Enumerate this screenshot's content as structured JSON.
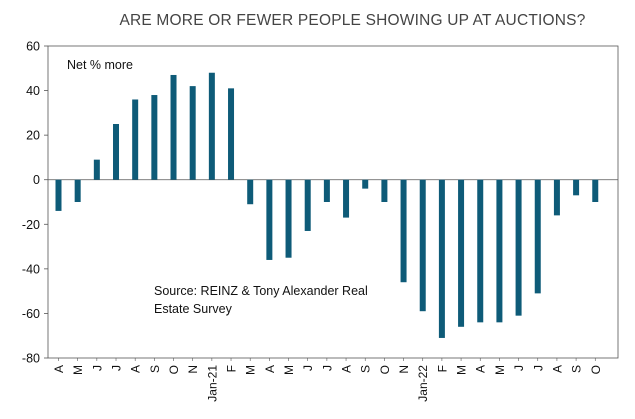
{
  "chart_data": {
    "type": "bar",
    "title": "ARE MORE OR FEWER PEOPLE SHOWING UP AT AUCTIONS?",
    "annotation": "Net % more",
    "source_line1": "Source: REINZ & Tony Alexander Real",
    "source_line2": "Estate Survey",
    "xlabel": "",
    "ylabel": "",
    "ylim": [
      -80,
      60
    ],
    "yticks": [
      60,
      40,
      20,
      0,
      -20,
      -40,
      -60,
      -80
    ],
    "ytick_labels": [
      "60",
      "40",
      "20",
      "0",
      "-20",
      "-40",
      "-60",
      "-80"
    ],
    "categories": [
      "A",
      "M",
      "J",
      "J",
      "A",
      "S",
      "O",
      "N",
      "Jan-21",
      "F",
      "M",
      "A",
      "M",
      "J",
      "J",
      "A",
      "S",
      "O",
      "N",
      "Jan-22",
      "F",
      "M",
      "A",
      "M",
      "J",
      "J",
      "A",
      "S",
      "O"
    ],
    "series": [
      {
        "name": "Net % more",
        "color": "#0e5b78",
        "values": [
          -14,
          -10,
          9,
          25,
          36,
          38,
          47,
          42,
          48,
          41,
          -11,
          -36,
          -35,
          -23,
          -10,
          -17,
          -4,
          -10,
          -46,
          -59,
          -71,
          -66,
          -64,
          -64,
          -61,
          -51,
          -16,
          -7,
          -10
        ]
      }
    ]
  }
}
